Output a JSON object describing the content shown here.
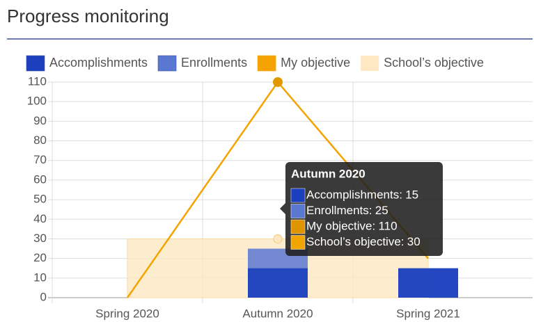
{
  "chart_data": {
    "type": "combo",
    "title": "Progress monitoring",
    "categories": [
      "Spring 2020",
      "Autumn 2020",
      "Spring 2021"
    ],
    "series": [
      {
        "name": "Accomplishments",
        "color": "#1c3fbe",
        "kind": "bar",
        "values": [
          0,
          15,
          15
        ]
      },
      {
        "name": "Enrollments",
        "color": "#5a78d2",
        "kind": "bar",
        "values": [
          0,
          25,
          15
        ]
      },
      {
        "name": "My objective",
        "color": "#f5a300",
        "kind": "line",
        "values": [
          0,
          110,
          20
        ]
      },
      {
        "name": "School’s objective",
        "color": "#fde8c3",
        "kind": "area",
        "values": [
          30,
          30,
          30
        ]
      }
    ],
    "ylim": [
      0,
      110
    ],
    "yticks": [
      0,
      10,
      20,
      30,
      40,
      50,
      60,
      70,
      80,
      90,
      100,
      110
    ],
    "grid": true,
    "legend": "top",
    "tooltip_index": 1
  }
}
